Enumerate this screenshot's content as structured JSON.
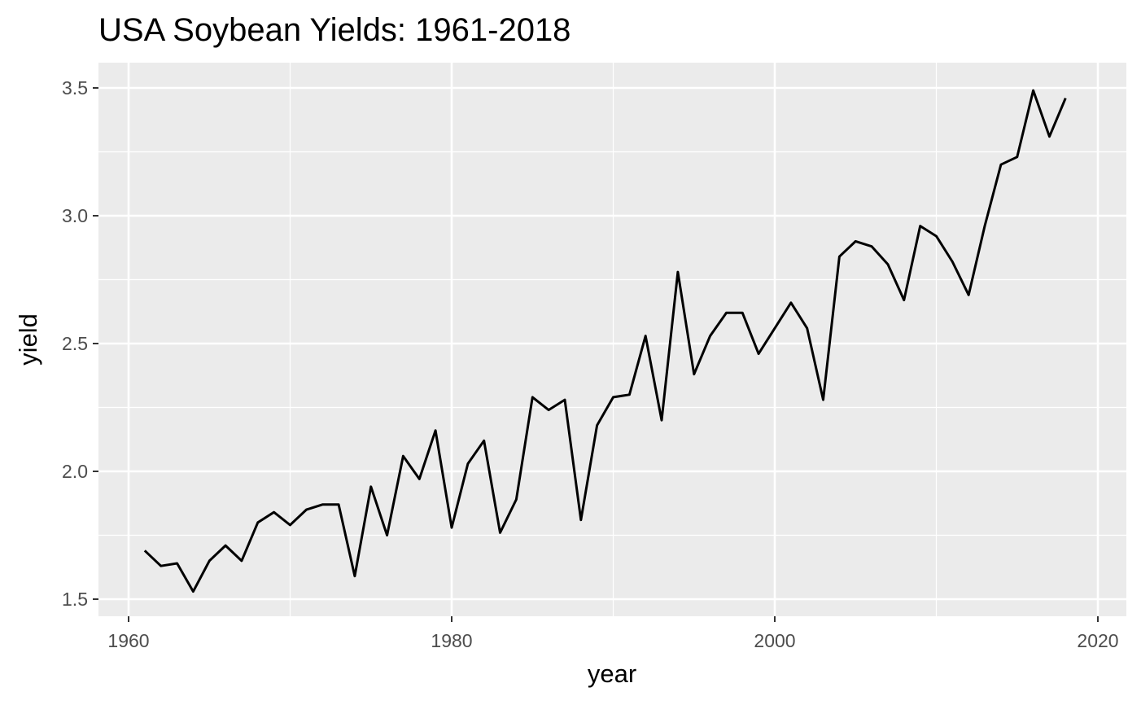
{
  "chart_data": {
    "type": "line",
    "title": "USA Soybean Yields: 1961-2018",
    "xlabel": "year",
    "ylabel": "yield",
    "xlim": [
      1960,
      2020
    ],
    "ylim": [
      1.5,
      3.5
    ],
    "x_ticks": [
      1960,
      1980,
      2000,
      2020
    ],
    "y_ticks": [
      "1.5",
      "2.0",
      "2.5",
      "3.0",
      "3.5"
    ],
    "grid": true,
    "legend": "none",
    "colors": {
      "panel": "#ebebeb",
      "grid": "#ffffff",
      "line": "#000000",
      "tick_text": "#4d4d4d"
    },
    "series": [
      {
        "x": [
          1961,
          1962,
          1963,
          1964,
          1965,
          1966,
          1967,
          1968,
          1969,
          1970,
          1971,
          1972,
          1973,
          1974,
          1975,
          1976,
          1977,
          1978,
          1979,
          1980,
          1981,
          1982,
          1983,
          1984,
          1985,
          1986,
          1987,
          1988,
          1989,
          1990,
          1991,
          1992,
          1993,
          1994,
          1995,
          1996,
          1997,
          1998,
          1999,
          2000,
          2001,
          2002,
          2003,
          2004,
          2005,
          2006,
          2007,
          2008,
          2009,
          2010,
          2011,
          2012,
          2013,
          2014,
          2015,
          2016,
          2017,
          2018
        ],
        "values": [
          1.69,
          1.63,
          1.64,
          1.53,
          1.65,
          1.71,
          1.65,
          1.8,
          1.84,
          1.79,
          1.85,
          1.87,
          1.87,
          1.59,
          1.94,
          1.75,
          2.06,
          1.97,
          2.16,
          1.78,
          2.03,
          2.12,
          1.76,
          1.89,
          2.29,
          2.24,
          2.28,
          1.81,
          2.18,
          2.29,
          2.3,
          2.53,
          2.2,
          2.78,
          2.38,
          2.53,
          2.62,
          2.62,
          2.46,
          2.56,
          2.66,
          2.56,
          2.28,
          2.84,
          2.9,
          2.88,
          2.81,
          2.67,
          2.96,
          2.92,
          2.82,
          2.69,
          2.96,
          3.2,
          3.23,
          3.49,
          3.31,
          3.46
        ]
      }
    ]
  }
}
